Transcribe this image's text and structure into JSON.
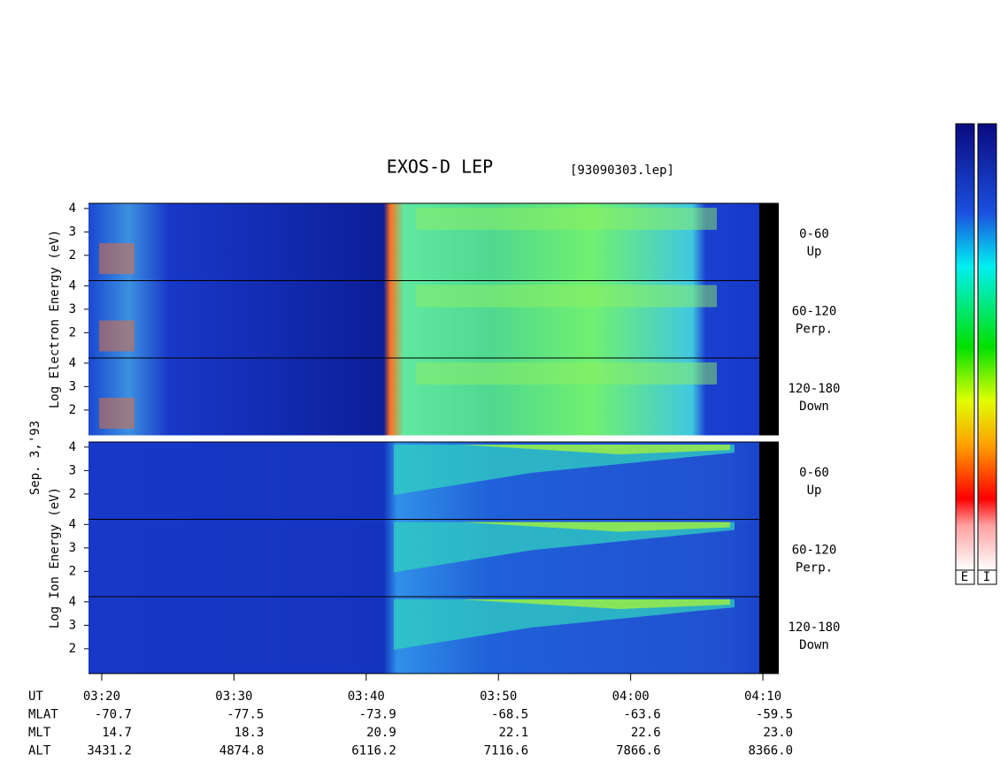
{
  "chart_data": {
    "type": "spectrogram",
    "title": "EXOS-D LEP",
    "subtitle": "[93090303.lep]",
    "date_label": "Sep. 3,'93",
    "xlim": [
      199,
      251.2
    ],
    "xticks": [
      {
        "value": 200,
        "label": "03:20"
      },
      {
        "value": 210,
        "label": "03:30"
      },
      {
        "value": 220,
        "label": "03:40"
      },
      {
        "value": 230,
        "label": "03:50"
      },
      {
        "value": 240,
        "label": "04:00"
      },
      {
        "value": 250,
        "label": "04:10"
      }
    ],
    "ylim": [
      0.92,
      4.22
    ],
    "yticks": [
      2,
      3,
      4
    ],
    "groups": [
      {
        "ylabel": "Log Electron Energy (eV)"
      },
      {
        "ylabel": "Log Ion Energy (eV)"
      }
    ],
    "panels": [
      {
        "range": "0-60",
        "direction": "Up"
      },
      {
        "range": "60-120",
        "direction": "Perp."
      },
      {
        "range": "120-180",
        "direction": "Down"
      },
      {
        "range": "0-60",
        "direction": "Up"
      },
      {
        "range": "60-120",
        "direction": "Perp."
      },
      {
        "range": "120-180",
        "direction": "Down"
      }
    ],
    "orbit": [
      {
        "label": "UT"
      },
      {
        "label": "MLAT",
        "values": [
          "-70.7",
          "-77.5",
          "-73.9",
          "-68.5",
          "-63.6",
          "-59.5"
        ]
      },
      {
        "label": "MLT",
        "values": [
          "14.7",
          "18.3",
          "20.9",
          "22.1",
          "22.6",
          "23.0"
        ]
      },
      {
        "label": "ALT",
        "values": [
          "3431.2",
          "4874.8",
          "6116.2",
          "7116.6",
          "7866.6",
          "8366.0"
        ]
      }
    ],
    "colorbar_labels": [
      "E",
      "I"
    ]
  }
}
